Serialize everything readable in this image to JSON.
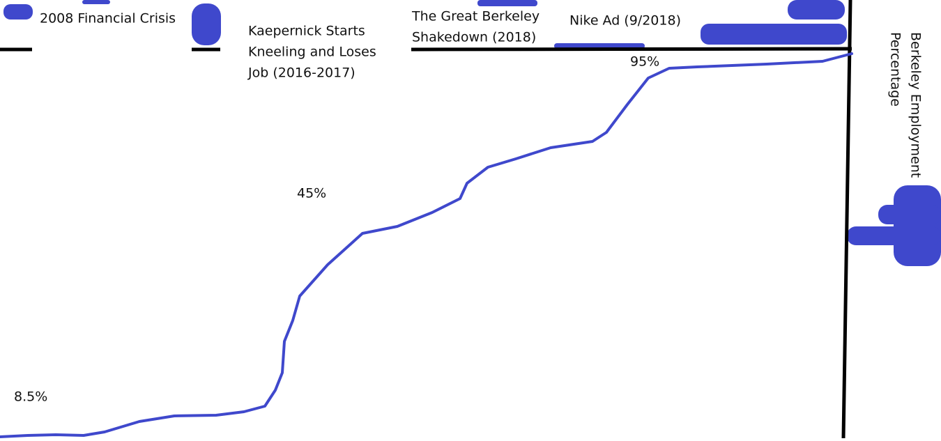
{
  "events": [
    {
      "lines": [
        "2008 Financial Crisis"
      ]
    },
    {
      "lines": [
        "Kaepernick Starts",
        "Kneeling and Loses",
        "Job (2016-2017)"
      ]
    },
    {
      "lines": [
        "The Great Berkeley",
        "Shakedown (2018)"
      ]
    },
    {
      "lines": [
        "Nike Ad (9/2018)"
      ]
    }
  ],
  "annotations": [
    "8.5%",
    "45%",
    "95%"
  ],
  "axis_label": [
    "Berkeley Employment",
    "Percentage"
  ]
}
